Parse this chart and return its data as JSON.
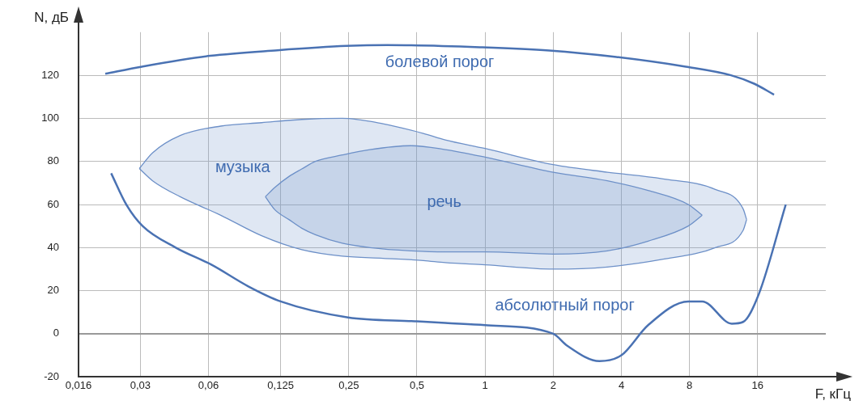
{
  "chart_data": {
    "type": "line",
    "xlabel": "F, кГц",
    "ylabel": "N, дБ",
    "log": "x",
    "grid": true,
    "legend": false,
    "marker": "none",
    "line_style": "solid",
    "xlim": [
      0.016,
      32
    ],
    "xticks": [
      {
        "value": 0.016,
        "label": "0,016"
      },
      {
        "value": 0.03,
        "label": "0,03"
      },
      {
        "value": 0.06,
        "label": "0,06"
      },
      {
        "value": 0.125,
        "label": "0,125"
      },
      {
        "value": 0.25,
        "label": "0,25"
      },
      {
        "value": 0.5,
        "label": "0,5"
      },
      1,
      2,
      4,
      8,
      16
    ],
    "ylim": [
      -20,
      140
    ],
    "yticks": [
      -20,
      0,
      20,
      40,
      60,
      80,
      100,
      120
    ],
    "series": [
      {
        "type": "line",
        "name": "болевой порог",
        "color": "#4a72b3",
        "x": [
          0.021,
          0.0305,
          0.061,
          0.121,
          0.244,
          0.37,
          0.95,
          1.92,
          3.8,
          7.7,
          12.2,
          15.5,
          18.9
        ],
        "values": [
          120.7,
          124,
          129,
          131.6,
          133.6,
          134,
          133,
          131.5,
          128.5,
          124,
          120,
          116,
          111
        ]
      },
      {
        "type": "area",
        "name": "музыка",
        "color": "#6d90c8",
        "x": [
          0.0297,
          0.034,
          0.045,
          0.068,
          0.103,
          0.155,
          0.234,
          0.354,
          0.534,
          0.667,
          1,
          2,
          3.47,
          6.05,
          10.4,
          13.8,
          14.3
        ],
        "values": [
          76.7,
          84,
          92,
          96.4,
          98,
          99.5,
          100,
          97.5,
          93,
          90,
          86,
          78.5,
          75,
          72,
          67,
          58,
          53
        ]
      },
      {
        "type": "line",
        "color": "#6d90c8",
        "x": [
          0.0297,
          0.034,
          0.045,
          0.068,
          0.103,
          0.155,
          0.234,
          0.354,
          0.534,
          0.667,
          1,
          2,
          3.47,
          6.05,
          10.4,
          13.8,
          14.3
        ],
        "values": [
          76.7,
          71,
          63.6,
          55,
          45.5,
          39,
          36,
          35,
          34,
          33,
          32,
          30,
          31,
          34.5,
          40,
          48,
          53
        ]
      },
      {
        "type": "area",
        "name": "речь",
        "color": "#6d90c8",
        "x": [
          0.107,
          0.118,
          0.136,
          0.155,
          0.178,
          0.234,
          0.31,
          0.47,
          0.667,
          1,
          2,
          3.47,
          5.25,
          7.9,
          9.1
        ],
        "values": [
          63.6,
          68,
          73,
          76.5,
          80,
          83,
          85.5,
          87.3,
          85.5,
          82,
          75,
          71,
          66.5,
          60,
          55
        ]
      },
      {
        "type": "line",
        "color": "#6d90c8",
        "x": [
          0.107,
          0.118,
          0.136,
          0.155,
          0.178,
          0.234,
          0.31,
          0.47,
          0.667,
          1,
          2,
          3.47,
          5.25,
          7.9,
          9.1
        ],
        "values": [
          63.6,
          57.5,
          53,
          49,
          46,
          42,
          40,
          38.5,
          38,
          38,
          37,
          38.5,
          43,
          50,
          55
        ]
      },
      {
        "type": "line",
        "name": "абсолютный порог",
        "color": "#4a72b3",
        "x": [
          0.0223,
          0.026,
          0.0307,
          0.043,
          0.062,
          0.09,
          0.125,
          0.248,
          0.49,
          0.667,
          1,
          2,
          2.3,
          3.2,
          4,
          5.25,
          7.9,
          9.1,
          12.3,
          13.8,
          16.2,
          21.3
        ],
        "values": [
          74.5,
          60,
          50,
          40,
          32,
          22,
          15,
          7.6,
          5.8,
          5,
          4,
          0,
          -5.5,
          -12.7,
          -10,
          4,
          15,
          15,
          4.7,
          5.5,
          18.5,
          60
        ]
      }
    ]
  }
}
